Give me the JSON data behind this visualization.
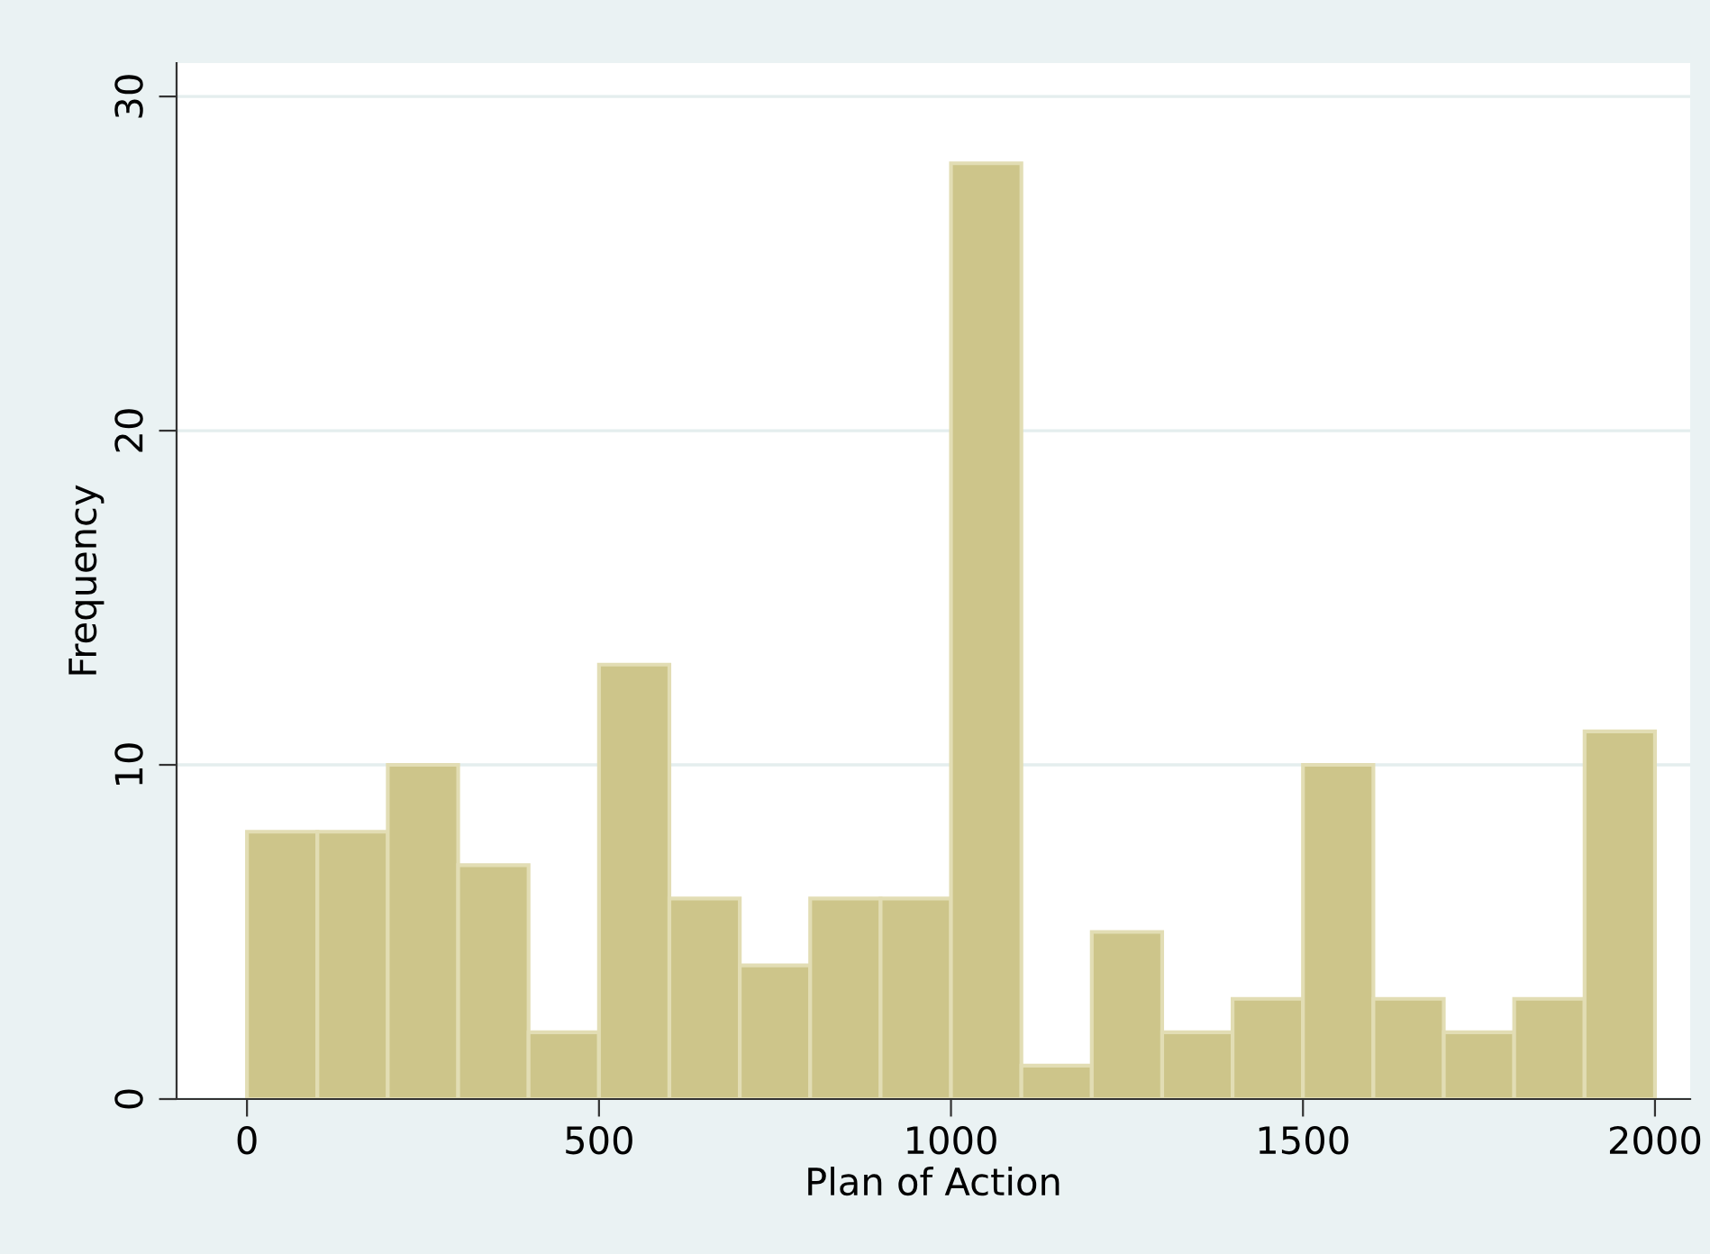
{
  "chart_data": {
    "type": "histogram",
    "xlabel": "Plan of Action",
    "ylabel": "Frequency",
    "bins": [
      0,
      100,
      200,
      300,
      400,
      500,
      600,
      700,
      800,
      900,
      1000,
      1100,
      1200,
      1300,
      1400,
      1500,
      1600,
      1700,
      1800,
      1900,
      2000
    ],
    "values": [
      8,
      8,
      10,
      7,
      2,
      13,
      6,
      4,
      6,
      6,
      28,
      1,
      5,
      2,
      3,
      10,
      3,
      2,
      3,
      11
    ],
    "color": "#cdc58a",
    "xlim": [
      -100,
      2050
    ],
    "ylim": [
      0,
      31
    ],
    "xticks": [
      0,
      500,
      1000,
      1500,
      2000
    ],
    "yticks": [
      0,
      10,
      20,
      30
    ],
    "grid": "y"
  }
}
